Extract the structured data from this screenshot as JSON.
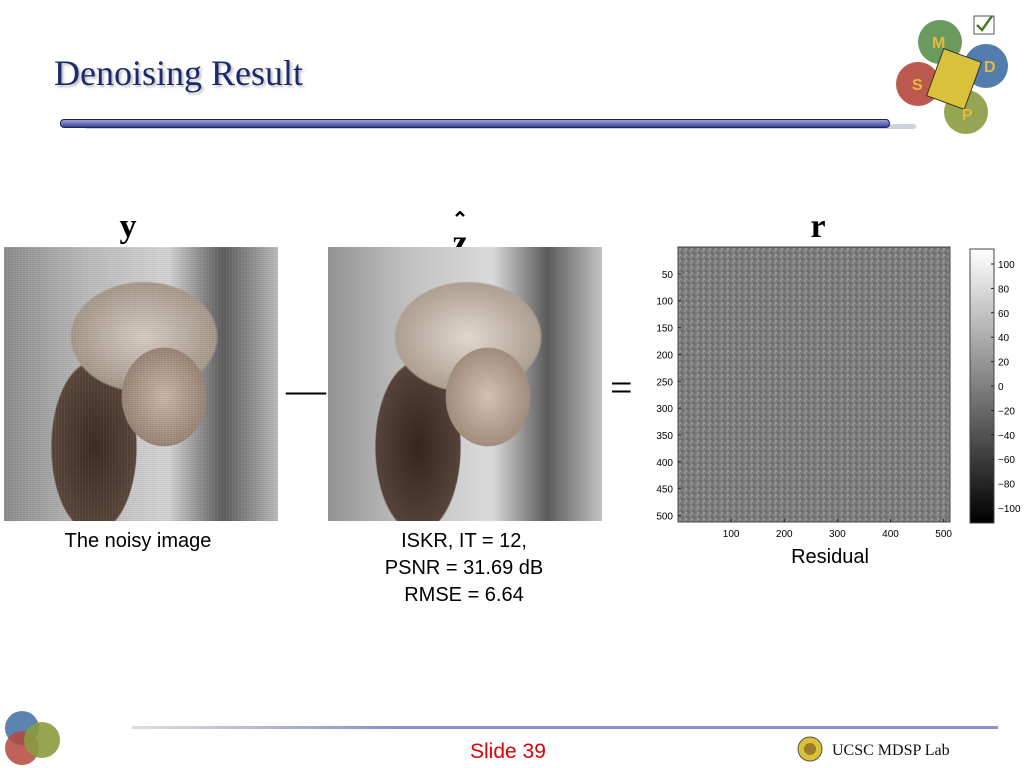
{
  "slide": {
    "title": "Denoising Result",
    "slide_number": "Slide 39",
    "footer_lab": "UCSC MDSP Lab"
  },
  "logo": {
    "letters": [
      "M",
      "D",
      "S",
      "P"
    ],
    "colors": [
      "#5b8f4e",
      "#3f6fa3",
      "#b5473c",
      "#8a9b3f"
    ]
  },
  "panels": {
    "noisy": {
      "symbol": "y",
      "caption": "The noisy image"
    },
    "denoised": {
      "symbol": "z",
      "caption_lines": [
        "ISKR, IT = 12,",
        "PSNR = 31.69 dB",
        "RMSE = 6.64"
      ]
    },
    "residual": {
      "symbol": "r",
      "caption": "Residual"
    }
  },
  "operators": {
    "minus": "—",
    "equals": "="
  },
  "residual_axes": {
    "y_ticks": [
      "50",
      "100",
      "150",
      "200",
      "250",
      "300",
      "350",
      "400",
      "450",
      "500"
    ],
    "x_ticks": [
      "100",
      "200",
      "300",
      "400",
      "500"
    ],
    "colorbar_ticks": [
      "100",
      "80",
      "60",
      "40",
      "20",
      "0",
      "−20",
      "−40",
      "−60",
      "−80",
      "−100"
    ]
  }
}
